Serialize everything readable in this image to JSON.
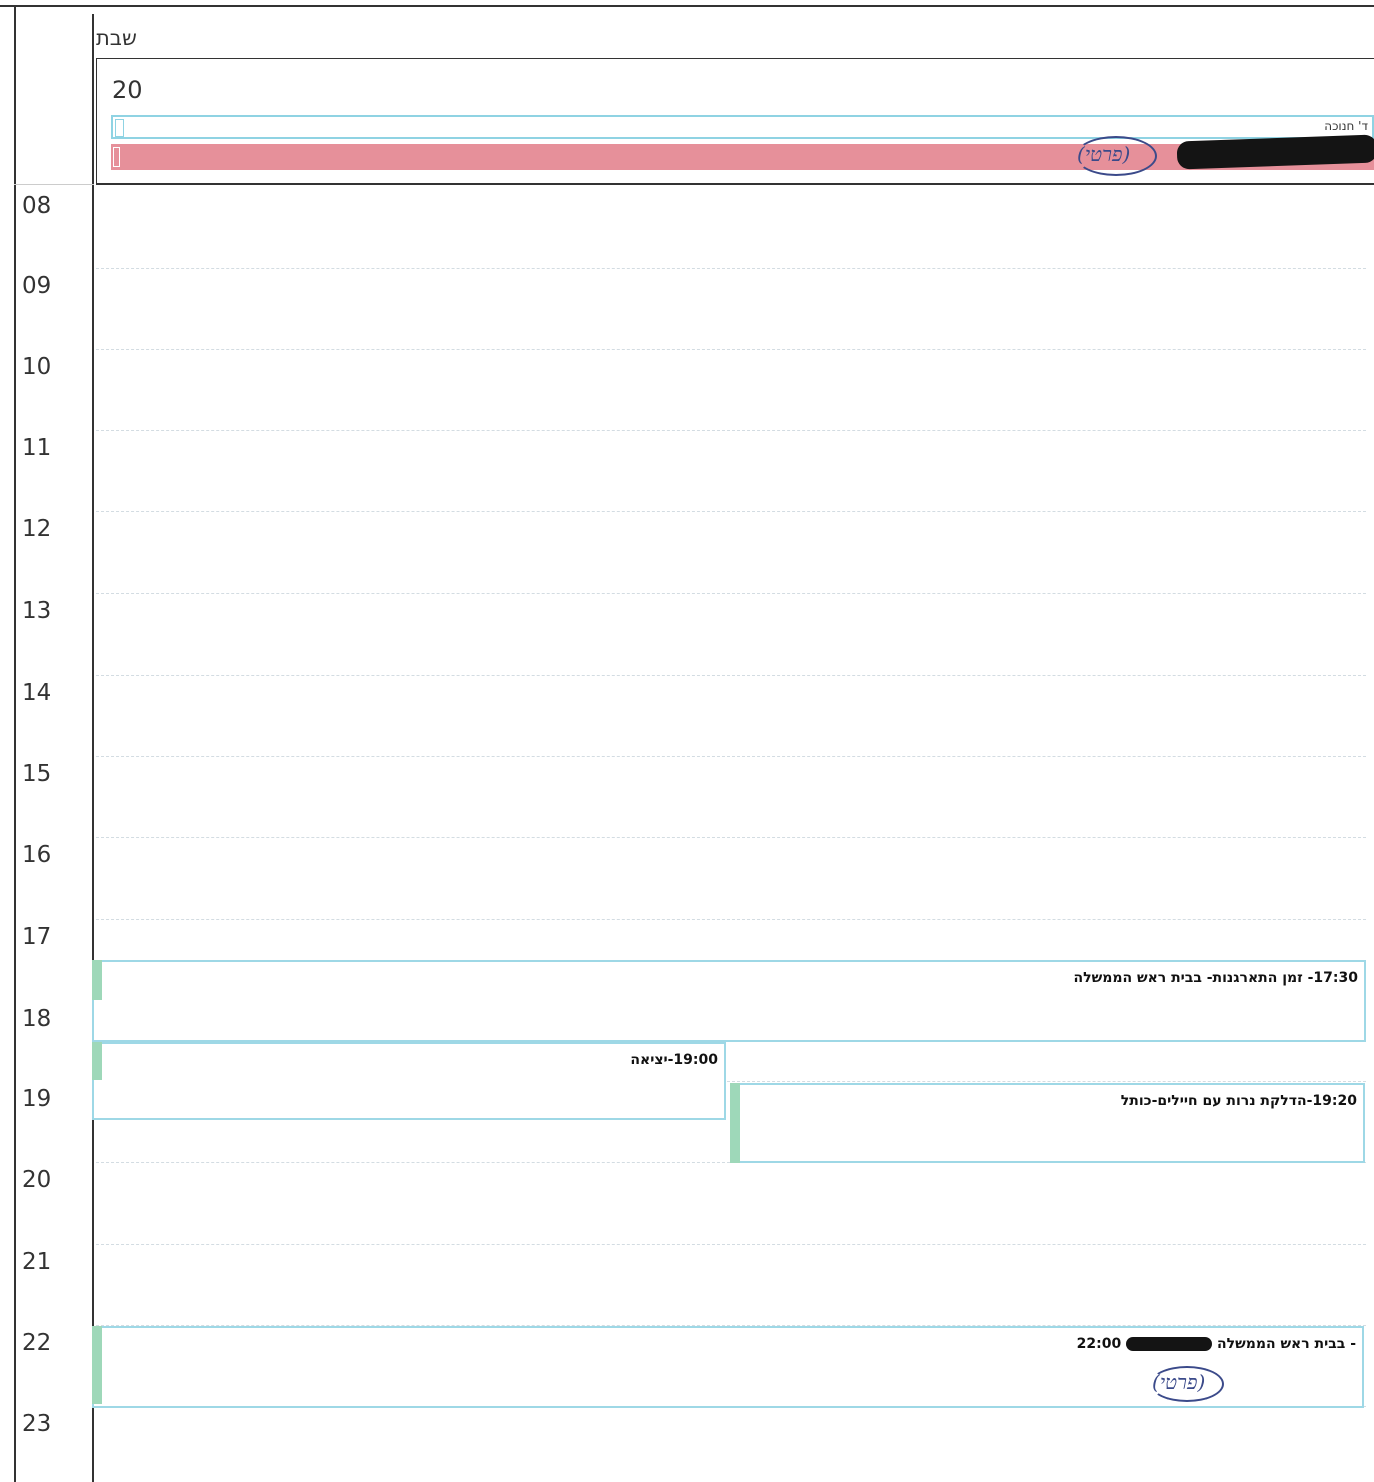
{
  "header": {
    "day_name": "שבת",
    "date": "20"
  },
  "all_day": {
    "holiday_label": "ד' חנוכה",
    "private_stamp": "(פרטי)"
  },
  "hours": [
    "08",
    "09",
    "10",
    "11",
    "12",
    "13",
    "14",
    "15",
    "16",
    "17",
    "18",
    "19",
    "20",
    "21",
    "22",
    "23"
  ],
  "events": [
    {
      "title": "17:30- זמן התארגנות- בבית ראש הממשלה"
    },
    {
      "title": "19:00-יציאה"
    },
    {
      "title": "19:20-הדלקת נרות עם חיילים-כותל"
    },
    {
      "title_time": "22:00",
      "title_text": "- בבית ראש הממשלה",
      "stamp": "(פרטי)"
    }
  ],
  "colors": {
    "event_border": "#9ed8e6",
    "event_bar": "#9ed8b9",
    "private_fill": "#e6909a"
  }
}
